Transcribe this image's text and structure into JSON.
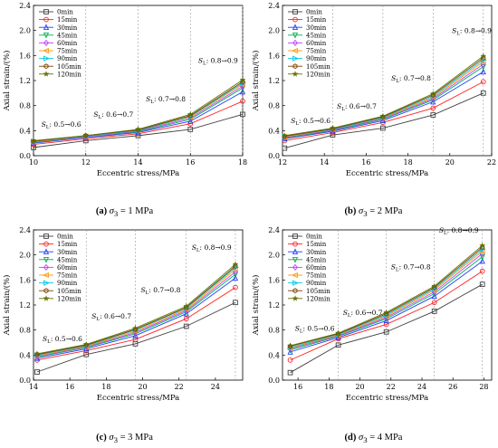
{
  "legend_labels": [
    "0min",
    "15min",
    "30min",
    "45min",
    "60min",
    "75min",
    "90min",
    "105min",
    "120min"
  ],
  "series_colors": [
    "#404040",
    "#ff2020",
    "#2040ff",
    "#00b050",
    "#c040ff",
    "#ff9900",
    "#00c8e0",
    "#804000",
    "#607000"
  ],
  "series_markers": [
    "square",
    "circle",
    "triangle-up",
    "triangle-down",
    "diamond",
    "triangle-left",
    "triangle-right",
    "hexagon",
    "star"
  ],
  "sl_prefix": "S",
  "sl_sub": "L",
  "chart_data": [
    {
      "type": "line",
      "caption_letter": "(a)",
      "caption_value": "= 1 MPa",
      "xlabel": "Eccentric stress/MPa",
      "ylabel": "Axial strain/(%)",
      "xlim": [
        10,
        18
      ],
      "ylim": [
        0,
        2.4
      ],
      "xticks": [
        "10",
        "12",
        "14",
        "16",
        "18"
      ],
      "yticks": [
        "0.0",
        "0.4",
        "0.8",
        "1.2",
        "1.6",
        "2.0",
        "2.4"
      ],
      "x": [
        10,
        12,
        14,
        16,
        18
      ],
      "vlines": [
        12,
        14,
        16,
        18
      ],
      "stage_labels": [
        {
          "text": ": 0.5→0.6",
          "x": 10.3,
          "y": 0.46
        },
        {
          "text": ": 0.6→0.7",
          "x": 12.3,
          "y": 0.62
        },
        {
          "text": ": 0.7→0.8",
          "x": 14.3,
          "y": 0.87
        },
        {
          "text": ": 0.8→0.9",
          "x": 16.3,
          "y": 1.48
        }
      ],
      "series": [
        {
          "name": "0min",
          "values": [
            0.13,
            0.24,
            0.32,
            0.42,
            0.66
          ]
        },
        {
          "name": "15min",
          "values": [
            0.18,
            0.27,
            0.35,
            0.51,
            0.87
          ]
        },
        {
          "name": "30min",
          "values": [
            0.2,
            0.29,
            0.37,
            0.55,
            1.02
          ]
        },
        {
          "name": "45min",
          "values": [
            0.21,
            0.3,
            0.38,
            0.58,
            1.08
          ]
        },
        {
          "name": "60min",
          "values": [
            0.22,
            0.3,
            0.39,
            0.6,
            1.11
          ]
        },
        {
          "name": "75min",
          "values": [
            0.22,
            0.31,
            0.4,
            0.62,
            1.14
          ]
        },
        {
          "name": "90min",
          "values": [
            0.23,
            0.31,
            0.4,
            0.63,
            1.16
          ]
        },
        {
          "name": "105min",
          "values": [
            0.23,
            0.32,
            0.41,
            0.64,
            1.18
          ]
        },
        {
          "name": "120min",
          "values": [
            0.24,
            0.32,
            0.42,
            0.66,
            1.21
          ]
        }
      ]
    },
    {
      "type": "line",
      "caption_letter": "(b)",
      "caption_value": "= 2 MPa",
      "xlabel": "Eccentric stress/MPa",
      "ylabel": "Axial strain/(%)",
      "xlim": [
        12,
        22
      ],
      "ylim": [
        0,
        2.4
      ],
      "xticks": [
        "12",
        "14",
        "16",
        "18",
        "20",
        "22"
      ],
      "yticks": [
        "0.0",
        "0.4",
        "0.8",
        "1.2",
        "1.6",
        "2.0",
        "2.4"
      ],
      "x": [
        12.1,
        14.4,
        16.8,
        19.2,
        21.6
      ],
      "vlines": [
        14.4,
        16.8,
        19.2,
        21.6
      ],
      "stage_labels": [
        {
          "text": ": 0.5→0.6",
          "x": 12.4,
          "y": 0.52
        },
        {
          "text": ": 0.6→0.7",
          "x": 14.6,
          "y": 0.75
        },
        {
          "text": ": 0.7→0.8",
          "x": 17.2,
          "y": 1.2
        },
        {
          "text": ": 0.8→0.9",
          "x": 20.1,
          "y": 1.96
        }
      ],
      "series": [
        {
          "name": "0min",
          "values": [
            0.12,
            0.33,
            0.44,
            0.65,
            1.0
          ]
        },
        {
          "name": "15min",
          "values": [
            0.24,
            0.37,
            0.53,
            0.76,
            1.18
          ]
        },
        {
          "name": "30min",
          "values": [
            0.27,
            0.39,
            0.56,
            0.86,
            1.34
          ]
        },
        {
          "name": "45min",
          "values": [
            0.28,
            0.4,
            0.58,
            0.89,
            1.42
          ]
        },
        {
          "name": "60min",
          "values": [
            0.29,
            0.41,
            0.59,
            0.91,
            1.46
          ]
        },
        {
          "name": "75min",
          "values": [
            0.3,
            0.42,
            0.6,
            0.93,
            1.5
          ]
        },
        {
          "name": "90min",
          "values": [
            0.31,
            0.42,
            0.61,
            0.95,
            1.53
          ]
        },
        {
          "name": "105min",
          "values": [
            0.31,
            0.43,
            0.62,
            0.97,
            1.56
          ]
        },
        {
          "name": "120min",
          "values": [
            0.32,
            0.44,
            0.63,
            0.99,
            1.59
          ]
        }
      ]
    },
    {
      "type": "line",
      "caption_letter": "(c)",
      "caption_value": "= 3 MPa",
      "xlabel": "Eccentric stress/MPa",
      "ylabel": "Axial strain/(%)",
      "xlim": [
        14,
        25.5
      ],
      "ylim": [
        0,
        2.4
      ],
      "xticks": [
        "14",
        "16",
        "18",
        "20",
        "22",
        "24"
      ],
      "yticks": [
        "0.0",
        "0.4",
        "0.8",
        "1.2",
        "1.6",
        "2.0",
        "2.4"
      ],
      "x": [
        14.2,
        16.9,
        19.6,
        22.4,
        25.1
      ],
      "vlines": [
        16.9,
        19.6,
        22.4,
        25.1
      ],
      "stage_labels": [
        {
          "text": ": 0.5→0.6",
          "x": 14.5,
          "y": 0.62
        },
        {
          "text": ": 0.6→0.7",
          "x": 17.2,
          "y": 0.98
        },
        {
          "text": ": 0.7→0.8",
          "x": 19.9,
          "y": 1.4
        },
        {
          "text": ": 0.8→0.9",
          "x": 22.7,
          "y": 2.08
        }
      ],
      "series": [
        {
          "name": "0min",
          "values": [
            0.13,
            0.41,
            0.58,
            0.86,
            1.24
          ]
        },
        {
          "name": "15min",
          "values": [
            0.32,
            0.47,
            0.65,
            0.98,
            1.48
          ]
        },
        {
          "name": "30min",
          "values": [
            0.35,
            0.5,
            0.71,
            1.06,
            1.63
          ]
        },
        {
          "name": "45min",
          "values": [
            0.37,
            0.52,
            0.74,
            1.09,
            1.69
          ]
        },
        {
          "name": "60min",
          "values": [
            0.38,
            0.53,
            0.76,
            1.11,
            1.73
          ]
        },
        {
          "name": "75min",
          "values": [
            0.39,
            0.54,
            0.78,
            1.13,
            1.77
          ]
        },
        {
          "name": "90min",
          "values": [
            0.4,
            0.55,
            0.8,
            1.15,
            1.8
          ]
        },
        {
          "name": "105min",
          "values": [
            0.41,
            0.56,
            0.81,
            1.16,
            1.82
          ]
        },
        {
          "name": "120min",
          "values": [
            0.42,
            0.57,
            0.83,
            1.18,
            1.85
          ]
        }
      ]
    },
    {
      "type": "line",
      "caption_letter": "(d)",
      "caption_value": "= 4 MPa",
      "xlabel": "Eccentric stress/MPa",
      "ylabel": "Axial strain/(%)",
      "xlim": [
        15,
        28.5
      ],
      "ylim": [
        0,
        2.4
      ],
      "xticks": [
        "16",
        "18",
        "20",
        "22",
        "24",
        "26",
        "28"
      ],
      "yticks": [
        "0.0",
        "0.4",
        "0.8",
        "1.2",
        "1.6",
        "2.0",
        "2.4"
      ],
      "x": [
        15.5,
        18.6,
        21.7,
        24.8,
        27.9
      ],
      "vlines": [
        18.6,
        21.7,
        24.8,
        27.9
      ],
      "stage_labels": [
        {
          "text": ": 0.5→0.6",
          "x": 15.8,
          "y": 0.79
        },
        {
          "text": ": 0.6→0.7",
          "x": 18.9,
          "y": 1.04
        },
        {
          "text": ": 0.7→0.8",
          "x": 22.0,
          "y": 1.77
        },
        {
          "text": ": 0.8→0.9",
          "x": 25.1,
          "y": 2.36
        }
      ],
      "series": [
        {
          "name": "0min",
          "values": [
            0.12,
            0.56,
            0.77,
            1.1,
            1.53
          ]
        },
        {
          "name": "15min",
          "values": [
            0.32,
            0.66,
            0.89,
            1.24,
            1.74
          ]
        },
        {
          "name": "30min",
          "values": [
            0.45,
            0.68,
            0.95,
            1.34,
            1.9
          ]
        },
        {
          "name": "45min",
          "values": [
            0.48,
            0.7,
            0.98,
            1.38,
            1.97
          ]
        },
        {
          "name": "60min",
          "values": [
            0.5,
            0.71,
            1.0,
            1.41,
            2.02
          ]
        },
        {
          "name": "75min",
          "values": [
            0.51,
            0.72,
            1.02,
            1.44,
            2.06
          ]
        },
        {
          "name": "90min",
          "values": [
            0.52,
            0.73,
            1.04,
            1.46,
            2.09
          ]
        },
        {
          "name": "105min",
          "values": [
            0.54,
            0.74,
            1.06,
            1.48,
            2.12
          ]
        },
        {
          "name": "120min",
          "values": [
            0.55,
            0.75,
            1.08,
            1.5,
            2.15
          ]
        }
      ]
    }
  ]
}
